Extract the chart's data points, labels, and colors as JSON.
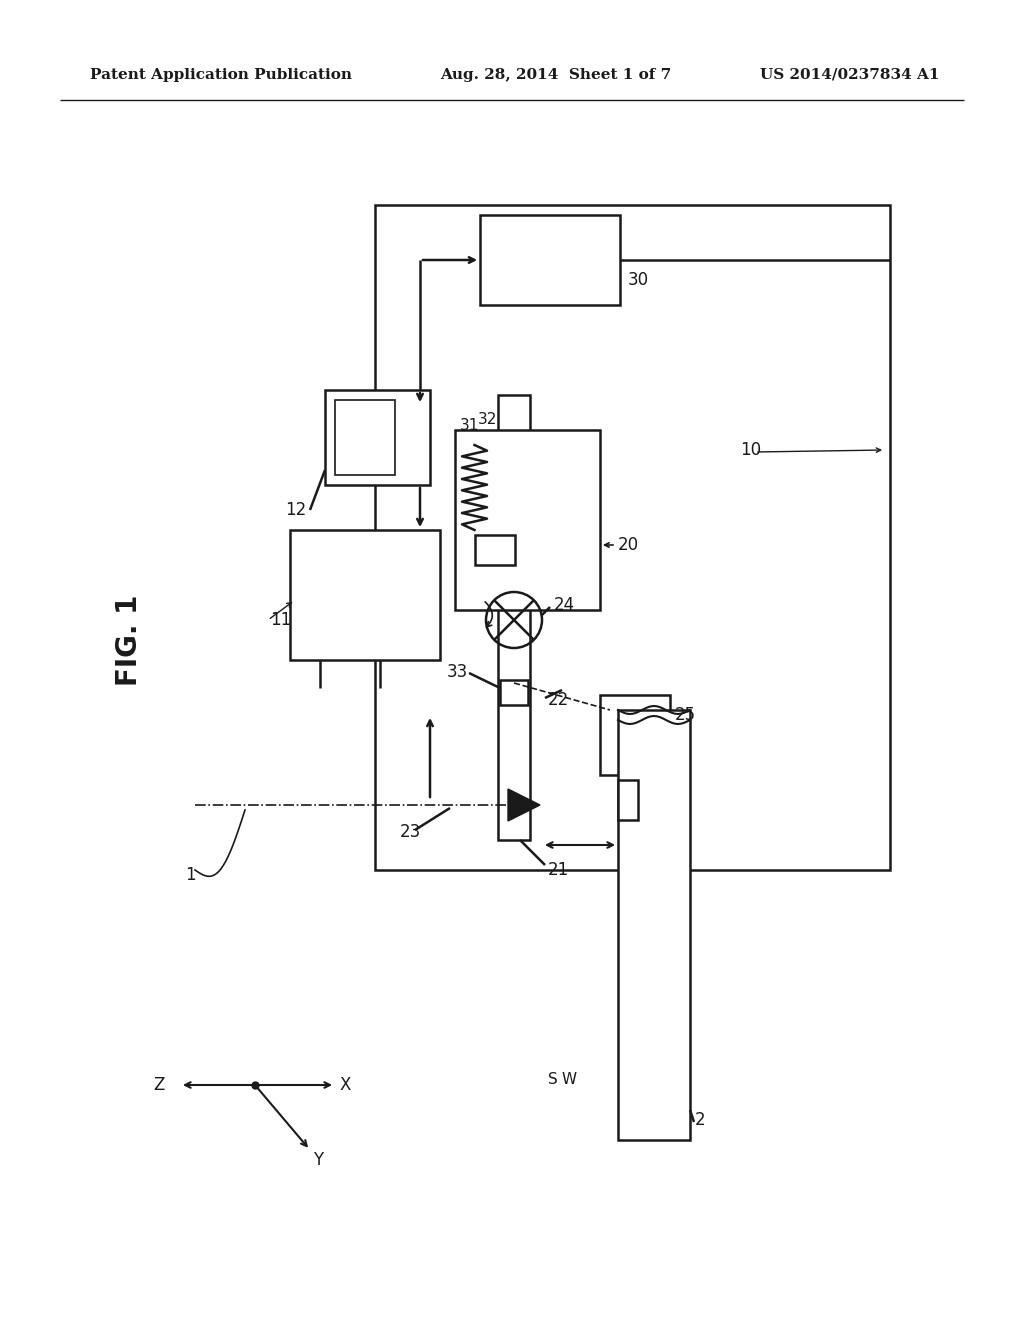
{
  "title_left": "Patent Application Publication",
  "title_mid": "Aug. 28, 2014  Sheet 1 of 7",
  "title_right": "US 2014/0237834 A1",
  "bg_color": "#ffffff",
  "line_color": "#1a1a1a"
}
